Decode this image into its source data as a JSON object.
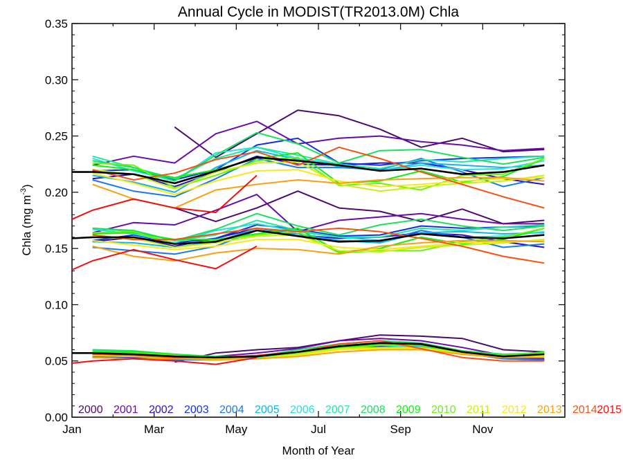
{
  "chart_data": {
    "type": "line",
    "title": "Annual Cycle in MODIST(TR2013.0M) Chla",
    "xlabel": "Month of Year",
    "ylabel": "Chla (mg m",
    "ylabel_sup": "-3",
    "ylabel_close": ")",
    "xlim": [
      0,
      12
    ],
    "ylim": [
      0,
      0.35
    ],
    "x_ticks": [
      {
        "value": 0,
        "label": "Jan"
      },
      {
        "value": 2,
        "label": "Mar"
      },
      {
        "value": 4,
        "label": "May"
      },
      {
        "value": 6,
        "label": "Jul"
      },
      {
        "value": 8,
        "label": "Sep"
      },
      {
        "value": 10,
        "label": "Nov"
      }
    ],
    "y_ticks": [
      {
        "value": 0,
        "label": "0.00"
      },
      {
        "value": 0.05,
        "label": "0.05"
      },
      {
        "value": 0.1,
        "label": "0.10"
      },
      {
        "value": 0.15,
        "label": "0.15"
      },
      {
        "value": 0.2,
        "label": "0.20"
      },
      {
        "value": 0.25,
        "label": "0.25"
      },
      {
        "value": 0.3,
        "label": "0.30"
      },
      {
        "value": 0.35,
        "label": "0.35"
      }
    ],
    "grid": false,
    "legend_placement": "bottom",
    "x": [
      0,
      0.5,
      1.5,
      2.5,
      3.5,
      4.5,
      5.5,
      6.5,
      7.5,
      8.5,
      9.5,
      10.5,
      11.5
    ],
    "series": [
      {
        "name": "2000",
        "color": "#4a0a6e",
        "groups": [
          [
            null,
            null,
            null,
            0.258,
            0.231,
            0.252,
            0.273,
            0.268,
            0.256,
            0.24,
            0.248,
            0.236,
            0.238
          ],
          [
            null,
            null,
            null,
            0.186,
            0.174,
            0.186,
            0.201,
            0.186,
            0.183,
            0.174,
            0.185,
            0.172,
            0.175
          ],
          [
            null,
            null,
            null,
            0.049,
            0.057,
            0.06,
            0.062,
            0.068,
            0.073,
            0.072,
            0.07,
            0.06,
            0.058
          ]
        ]
      },
      {
        "name": "2001",
        "color": "#6a0aa8",
        "groups": [
          [
            null,
            0.224,
            0.232,
            0.226,
            0.252,
            0.263,
            0.243,
            0.248,
            0.25,
            0.245,
            0.242,
            0.237,
            0.239
          ],
          [
            null,
            0.164,
            0.173,
            0.171,
            0.184,
            0.198,
            0.165,
            0.175,
            0.178,
            0.181,
            0.176,
            0.172,
            0.172
          ],
          [
            null,
            0.055,
            0.055,
            0.052,
            0.054,
            0.057,
            0.061,
            0.068,
            0.07,
            0.068,
            0.062,
            0.055,
            0.055
          ]
        ]
      },
      {
        "name": "2002",
        "color": "#2a10c8",
        "groups": [
          [
            null,
            0.212,
            0.216,
            0.205,
            0.218,
            0.232,
            0.225,
            0.224,
            0.226,
            0.226,
            0.22,
            0.212,
            0.207
          ],
          [
            null,
            0.156,
            0.16,
            0.152,
            0.159,
            0.168,
            0.162,
            0.159,
            0.16,
            0.164,
            0.162,
            0.156,
            0.151
          ],
          [
            null,
            0.053,
            0.052,
            0.051,
            0.052,
            0.053,
            0.057,
            0.062,
            0.063,
            0.063,
            0.058,
            0.053,
            0.052
          ]
        ]
      },
      {
        "name": "2003",
        "color": "#1030e8",
        "groups": [
          [
            null,
            0.219,
            0.22,
            0.211,
            0.22,
            0.242,
            0.248,
            0.226,
            0.224,
            0.228,
            0.23,
            0.231,
            0.232
          ],
          [
            null,
            0.157,
            0.162,
            0.155,
            0.159,
            0.171,
            0.167,
            0.161,
            0.162,
            0.17,
            0.168,
            0.169,
            0.17
          ],
          [
            null,
            0.054,
            0.053,
            0.052,
            0.052,
            0.053,
            0.058,
            0.064,
            0.066,
            0.064,
            0.057,
            0.052,
            0.051
          ]
        ]
      },
      {
        "name": "2004",
        "color": "#1878f0",
        "groups": [
          [
            null,
            0.211,
            0.201,
            0.196,
            0.212,
            0.23,
            0.222,
            0.222,
            0.22,
            0.23,
            0.218,
            0.205,
            0.213
          ],
          [
            null,
            0.151,
            0.148,
            0.145,
            0.152,
            0.166,
            0.162,
            0.157,
            0.156,
            0.166,
            0.16,
            0.151,
            0.154
          ],
          [
            null,
            0.054,
            0.052,
            0.051,
            0.051,
            0.053,
            0.057,
            0.062,
            0.064,
            0.063,
            0.057,
            0.052,
            0.051
          ]
        ]
      },
      {
        "name": "2005",
        "color": "#10b4e8",
        "groups": [
          [
            null,
            0.215,
            0.209,
            0.2,
            0.222,
            0.237,
            0.229,
            0.223,
            0.219,
            0.226,
            0.224,
            0.222,
            0.224
          ],
          [
            null,
            0.156,
            0.155,
            0.151,
            0.156,
            0.168,
            0.163,
            0.157,
            0.155,
            0.164,
            0.165,
            0.163,
            0.164
          ],
          [
            null,
            0.055,
            0.054,
            0.052,
            0.052,
            0.053,
            0.057,
            0.063,
            0.065,
            0.063,
            0.056,
            0.053,
            0.054
          ]
        ]
      },
      {
        "name": "2006",
        "color": "#28e0e0",
        "groups": [
          [
            null,
            0.23,
            0.219,
            0.21,
            0.235,
            0.24,
            0.23,
            0.225,
            0.219,
            0.224,
            0.22,
            0.221,
            0.228
          ],
          [
            null,
            0.167,
            0.163,
            0.155,
            0.166,
            0.172,
            0.165,
            0.16,
            0.157,
            0.163,
            0.16,
            0.161,
            0.165
          ],
          [
            null,
            0.059,
            0.056,
            0.053,
            0.052,
            0.053,
            0.058,
            0.063,
            0.064,
            0.062,
            0.056,
            0.054,
            0.055
          ]
        ]
      },
      {
        "name": "2007",
        "color": "#20e8a0",
        "groups": [
          [
            null,
            0.232,
            0.222,
            0.212,
            0.23,
            0.24,
            0.233,
            0.225,
            0.221,
            0.229,
            0.227,
            0.23,
            0.232
          ],
          [
            null,
            0.168,
            0.165,
            0.157,
            0.162,
            0.175,
            0.166,
            0.16,
            0.16,
            0.168,
            0.166,
            0.169,
            0.171
          ],
          [
            null,
            0.06,
            0.058,
            0.055,
            0.053,
            0.054,
            0.058,
            0.064,
            0.066,
            0.064,
            0.057,
            0.055,
            0.056
          ]
        ]
      },
      {
        "name": "2008",
        "color": "#18e060",
        "groups": [
          [
            null,
            0.228,
            0.222,
            0.21,
            0.233,
            0.253,
            0.243,
            0.226,
            0.237,
            0.238,
            0.231,
            0.225,
            0.231
          ],
          [
            null,
            0.168,
            0.166,
            0.157,
            0.167,
            0.181,
            0.17,
            0.162,
            0.171,
            0.176,
            0.17,
            0.166,
            0.17
          ],
          [
            null,
            0.06,
            0.059,
            0.056,
            0.054,
            0.054,
            0.06,
            0.065,
            0.068,
            0.066,
            0.059,
            0.056,
            0.057
          ]
        ]
      },
      {
        "name": "2009",
        "color": "#10f010",
        "groups": [
          [
            null,
            0.224,
            0.22,
            0.213,
            0.22,
            0.23,
            0.235,
            0.208,
            0.21,
            0.219,
            0.209,
            0.214,
            0.23
          ],
          [
            null,
            0.163,
            0.164,
            0.158,
            0.158,
            0.163,
            0.168,
            0.147,
            0.15,
            0.16,
            0.154,
            0.158,
            0.168
          ],
          [
            null,
            0.058,
            0.058,
            0.056,
            0.053,
            0.052,
            0.057,
            0.062,
            0.065,
            0.064,
            0.058,
            0.055,
            0.058
          ]
        ]
      },
      {
        "name": "2010",
        "color": "#70f010",
        "groups": [
          [
            null,
            0.226,
            0.224,
            0.204,
            0.215,
            0.228,
            0.231,
            0.206,
            0.208,
            0.202,
            0.215,
            0.216,
            0.23
          ],
          [
            null,
            0.164,
            0.165,
            0.154,
            0.157,
            0.162,
            0.165,
            0.146,
            0.148,
            0.148,
            0.156,
            0.16,
            0.168
          ],
          [
            null,
            0.057,
            0.057,
            0.055,
            0.052,
            0.052,
            0.057,
            0.061,
            0.064,
            0.064,
            0.058,
            0.055,
            0.057
          ]
        ]
      },
      {
        "name": "2011",
        "color": "#c8f010",
        "groups": [
          [
            null,
            0.22,
            0.216,
            0.203,
            0.218,
            0.226,
            0.227,
            0.207,
            0.201,
            0.205,
            0.208,
            0.21,
            0.215
          ],
          [
            null,
            0.16,
            0.159,
            0.151,
            0.155,
            0.161,
            0.162,
            0.148,
            0.147,
            0.151,
            0.153,
            0.155,
            0.158
          ],
          [
            null,
            0.056,
            0.056,
            0.054,
            0.052,
            0.052,
            0.056,
            0.061,
            0.062,
            0.062,
            0.057,
            0.054,
            0.055
          ]
        ]
      },
      {
        "name": "2012",
        "color": "#f8e818",
        "groups": [
          [
            null,
            0.217,
            0.208,
            0.198,
            0.21,
            0.219,
            0.22,
            0.21,
            0.205,
            0.207,
            0.21,
            0.212,
            0.213
          ],
          [
            null,
            0.157,
            0.153,
            0.149,
            0.152,
            0.158,
            0.158,
            0.151,
            0.149,
            0.152,
            0.155,
            0.156,
            0.157
          ],
          [
            null,
            0.055,
            0.054,
            0.053,
            0.052,
            0.052,
            0.055,
            0.06,
            0.061,
            0.061,
            0.056,
            0.053,
            0.054
          ]
        ]
      },
      {
        "name": "2013",
        "color": "#f8a010",
        "groups": [
          [
            null,
            0.207,
            0.194,
            0.186,
            0.202,
            0.207,
            0.211,
            0.208,
            0.211,
            0.212,
            0.213,
            0.213,
            0.21
          ],
          [
            null,
            0.152,
            0.143,
            0.139,
            0.146,
            0.15,
            0.149,
            0.145,
            0.152,
            0.155,
            0.157,
            0.157,
            0.156
          ],
          [
            null,
            0.053,
            0.052,
            0.052,
            0.051,
            0.052,
            0.054,
            0.058,
            0.06,
            0.06,
            0.056,
            0.053,
            0.053
          ]
        ]
      },
      {
        "name": "2014",
        "color": "#f85010",
        "groups": [
          [
            null,
            0.22,
            0.211,
            0.217,
            0.229,
            0.236,
            0.224,
            0.24,
            0.23,
            0.218,
            0.207,
            0.196,
            0.186
          ],
          [
            null,
            0.162,
            0.158,
            0.158,
            0.163,
            0.168,
            0.165,
            0.168,
            0.165,
            0.159,
            0.152,
            0.143,
            0.137
          ],
          [
            null,
            0.056,
            0.055,
            0.053,
            0.053,
            0.055,
            0.058,
            0.065,
            0.068,
            0.061,
            0.053,
            0.05,
            0.05
          ]
        ]
      },
      {
        "name": "2015",
        "color": "#f01010",
        "groups": [
          [
            0.176,
            0.184,
            0.194,
            0.186,
            0.182,
            0.215,
            null,
            null,
            null,
            null,
            null,
            null,
            null
          ],
          [
            0.131,
            0.139,
            0.149,
            0.14,
            0.132,
            0.152,
            null,
            null,
            null,
            null,
            null,
            null,
            null
          ],
          [
            0.048,
            0.05,
            0.052,
            0.05,
            0.047,
            0.053,
            null,
            null,
            null,
            null,
            null,
            null,
            null
          ]
        ]
      },
      {
        "name": "",
        "color": "#000000",
        "width": 2.6,
        "groups": [
          [
            0.218,
            0.218,
            0.216,
            0.208,
            0.219,
            0.231,
            0.228,
            0.224,
            0.219,
            0.221,
            0.216,
            0.218,
            0.224
          ],
          [
            0.159,
            0.16,
            0.16,
            0.154,
            0.156,
            0.166,
            0.161,
            0.156,
            0.157,
            0.163,
            0.16,
            0.159,
            0.162
          ],
          [
            0.057,
            0.057,
            0.056,
            0.054,
            0.053,
            0.054,
            0.058,
            0.063,
            0.066,
            0.065,
            0.058,
            0.054,
            0.056
          ]
        ]
      }
    ]
  }
}
